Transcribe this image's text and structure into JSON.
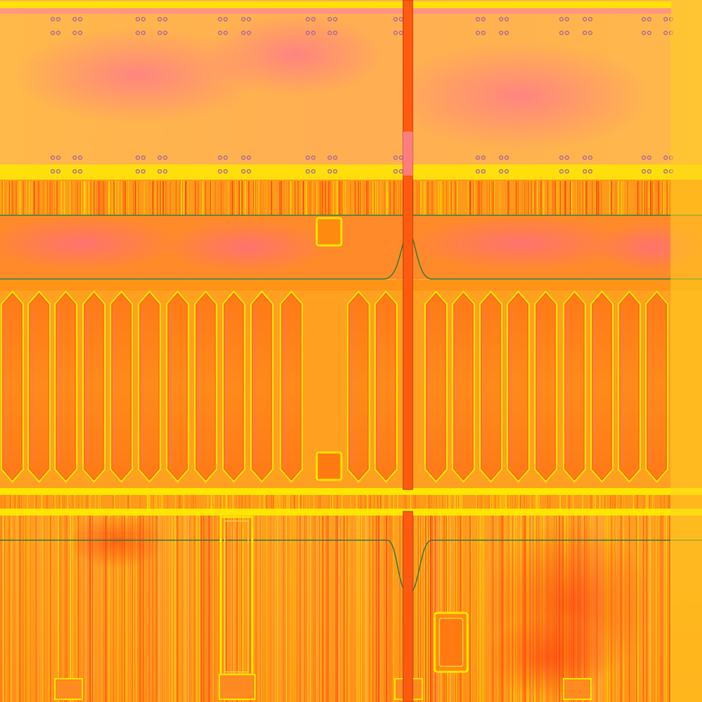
{
  "palette": {
    "base_orange": "#ff9a1a",
    "deep_orange": "#ff6a10",
    "light_orange": "#ffb84a",
    "yellow": "#ffe600",
    "bright_yellow": "#fff200",
    "pink": "#ff5fa8",
    "magenta_tint": "#f06ab8",
    "red_speckle": "#ff3a10",
    "green_line": "#2e7d3a",
    "rivet": "#b06a9a"
  },
  "panels": {
    "upper_panel": "upper-roof-panel",
    "middle_band": "middle-pink-band",
    "louver_section": "louver-section",
    "lower_panel": "lower-streaked-panel"
  },
  "louvers": {
    "left_count": 13,
    "right_count": 9
  },
  "icons": {
    "rivet": "rivet-pair-icon",
    "hatch": "square-hatch-icon",
    "seam": "center-seam-rod"
  }
}
